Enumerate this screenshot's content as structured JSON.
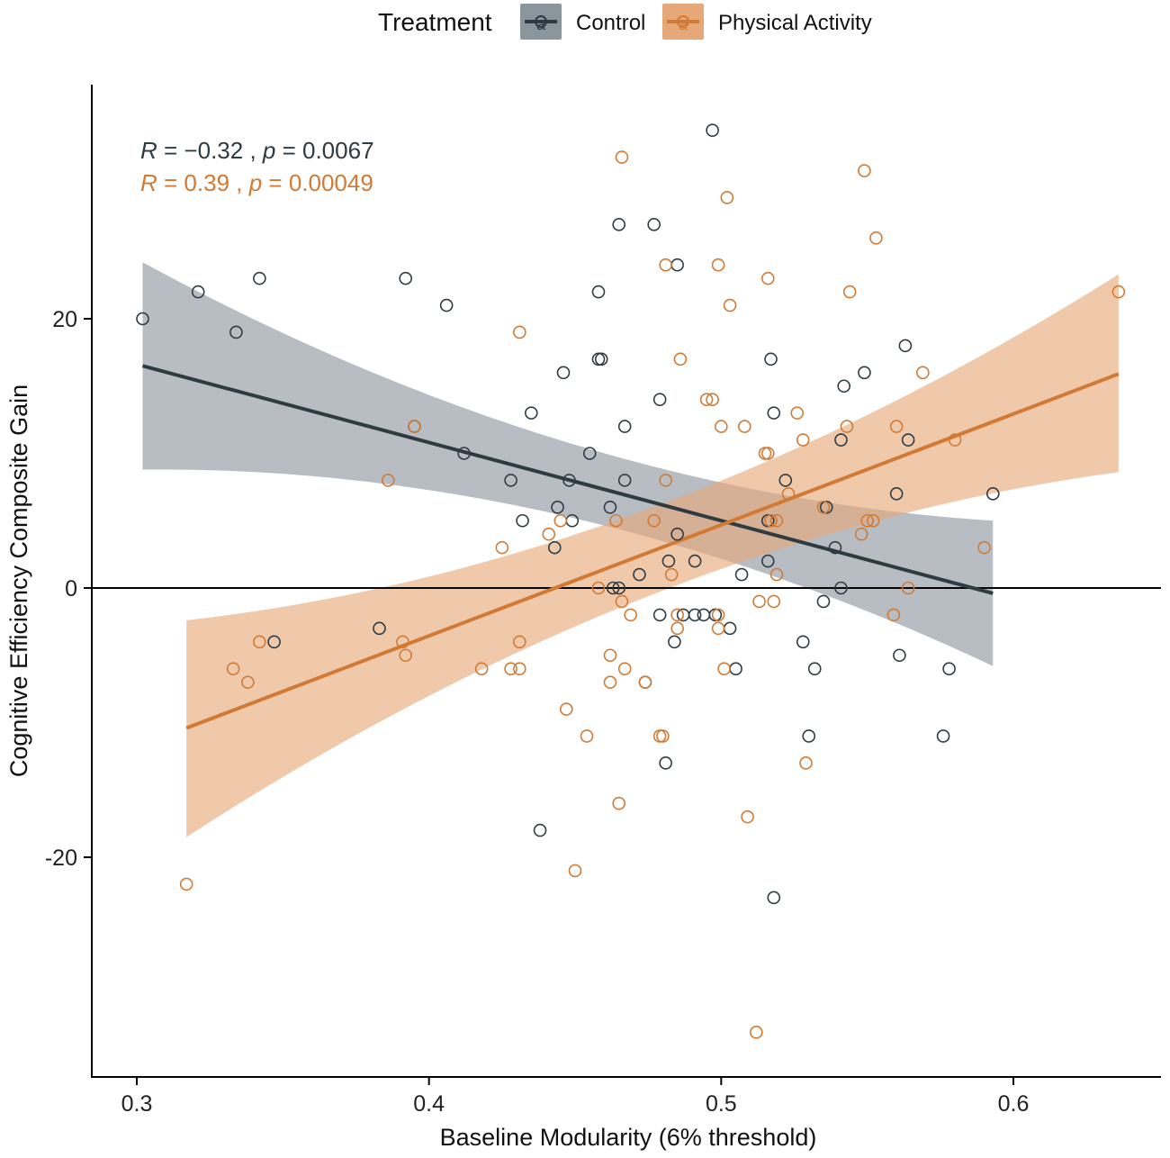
{
  "chart_data": {
    "type": "scatter",
    "xlabel": "Baseline Modularity (6% threshold)",
    "ylabel": "Cognitive Efficiency Composite Gain",
    "xlim": [
      0.285,
      0.65
    ],
    "ylim": [
      -36,
      37.5
    ],
    "xticks": [
      0.3,
      0.4,
      0.5,
      0.6
    ],
    "xtick_labels": [
      "0.3",
      "0.4",
      "0.5",
      "0.6"
    ],
    "yticks": [
      20,
      0,
      -20
    ],
    "ytick_labels": [
      "20",
      "0",
      "-20"
    ],
    "reference_line_y": 0,
    "grid": false,
    "legend": {
      "title": "Treatment",
      "position": "top",
      "entries": [
        "Control",
        "Physical Activity"
      ],
      "key_glyph": "a"
    },
    "series": [
      {
        "name": "Control",
        "color": "#2e3b42",
        "band_color": "#8a959c",
        "stat_R": "−0.32",
        "stat_p": "0.0067",
        "fit": {
          "x": [
            0.302,
            0.593
          ],
          "y": [
            16.5,
            -0.4
          ]
        },
        "ci_upper": [
          24.2,
          5.0
        ],
        "ci_lower": [
          8.8,
          -5.8
        ],
        "points": [
          [
            0.302,
            20
          ],
          [
            0.321,
            22
          ],
          [
            0.334,
            19
          ],
          [
            0.342,
            23
          ],
          [
            0.347,
            -4
          ],
          [
            0.383,
            -3
          ],
          [
            0.392,
            23
          ],
          [
            0.395,
            12
          ],
          [
            0.406,
            21
          ],
          [
            0.412,
            10
          ],
          [
            0.428,
            8
          ],
          [
            0.432,
            5
          ],
          [
            0.435,
            13
          ],
          [
            0.438,
            -18
          ],
          [
            0.443,
            3
          ],
          [
            0.444,
            6
          ],
          [
            0.446,
            16
          ],
          [
            0.448,
            8
          ],
          [
            0.449,
            5
          ],
          [
            0.455,
            10
          ],
          [
            0.458,
            22
          ],
          [
            0.458,
            17
          ],
          [
            0.459,
            17
          ],
          [
            0.462,
            6
          ],
          [
            0.463,
            0
          ],
          [
            0.465,
            27
          ],
          [
            0.465,
            0
          ],
          [
            0.467,
            12
          ],
          [
            0.467,
            8
          ],
          [
            0.472,
            1
          ],
          [
            0.474,
            -7
          ],
          [
            0.477,
            27
          ],
          [
            0.479,
            -2
          ],
          [
            0.479,
            14
          ],
          [
            0.481,
            -13
          ],
          [
            0.482,
            2
          ],
          [
            0.484,
            -4
          ],
          [
            0.485,
            24
          ],
          [
            0.485,
            4
          ],
          [
            0.487,
            -2
          ],
          [
            0.491,
            2
          ],
          [
            0.491,
            -2
          ],
          [
            0.494,
            -2
          ],
          [
            0.497,
            34
          ],
          [
            0.498,
            -2
          ],
          [
            0.503,
            -3
          ],
          [
            0.505,
            -6
          ],
          [
            0.507,
            1
          ],
          [
            0.516,
            5
          ],
          [
            0.516,
            2
          ],
          [
            0.517,
            17
          ],
          [
            0.518,
            13
          ],
          [
            0.518,
            -23
          ],
          [
            0.522,
            8
          ],
          [
            0.528,
            -4
          ],
          [
            0.53,
            -11
          ],
          [
            0.532,
            -6
          ],
          [
            0.535,
            -1
          ],
          [
            0.536,
            6
          ],
          [
            0.539,
            3
          ],
          [
            0.541,
            11
          ],
          [
            0.541,
            0
          ],
          [
            0.542,
            15
          ],
          [
            0.549,
            16
          ],
          [
            0.56,
            7
          ],
          [
            0.561,
            -5
          ],
          [
            0.563,
            18
          ],
          [
            0.564,
            11
          ],
          [
            0.576,
            -11
          ],
          [
            0.578,
            -6
          ],
          [
            0.593,
            7
          ]
        ]
      },
      {
        "name": "Physical Activity",
        "color": "#d27a34",
        "band_color": "#e6a878",
        "stat_R": "0.39",
        "stat_p": "0.00049",
        "fit": {
          "x": [
            0.317,
            0.636
          ],
          "y": [
            -10.4,
            15.9
          ]
        },
        "ci_upper": [
          -2.4,
          23.3
        ],
        "ci_lower": [
          -18.5,
          8.6
        ],
        "points": [
          [
            0.317,
            -22
          ],
          [
            0.333,
            -6
          ],
          [
            0.338,
            -7
          ],
          [
            0.342,
            -4
          ],
          [
            0.386,
            8
          ],
          [
            0.391,
            -4
          ],
          [
            0.392,
            -5
          ],
          [
            0.395,
            12
          ],
          [
            0.418,
            -6
          ],
          [
            0.425,
            3
          ],
          [
            0.428,
            -6
          ],
          [
            0.431,
            -6
          ],
          [
            0.431,
            -4
          ],
          [
            0.431,
            19
          ],
          [
            0.441,
            4
          ],
          [
            0.445,
            5
          ],
          [
            0.447,
            -9
          ],
          [
            0.45,
            -21
          ],
          [
            0.454,
            -11
          ],
          [
            0.458,
            0
          ],
          [
            0.462,
            -5
          ],
          [
            0.462,
            -7
          ],
          [
            0.464,
            5
          ],
          [
            0.465,
            -16
          ],
          [
            0.466,
            -1
          ],
          [
            0.466,
            32
          ],
          [
            0.467,
            -6
          ],
          [
            0.469,
            -2
          ],
          [
            0.474,
            -7
          ],
          [
            0.477,
            5
          ],
          [
            0.479,
            -11
          ],
          [
            0.48,
            -11
          ],
          [
            0.481,
            24
          ],
          [
            0.481,
            8
          ],
          [
            0.483,
            1
          ],
          [
            0.485,
            -2
          ],
          [
            0.485,
            -3
          ],
          [
            0.486,
            17
          ],
          [
            0.495,
            14
          ],
          [
            0.497,
            14
          ],
          [
            0.499,
            -2
          ],
          [
            0.499,
            -3
          ],
          [
            0.499,
            24
          ],
          [
            0.5,
            12
          ],
          [
            0.501,
            -6
          ],
          [
            0.502,
            29
          ],
          [
            0.503,
            21
          ],
          [
            0.508,
            12
          ],
          [
            0.509,
            -17
          ],
          [
            0.512,
            -33
          ],
          [
            0.513,
            -1
          ],
          [
            0.515,
            10
          ],
          [
            0.516,
            10
          ],
          [
            0.516,
            23
          ],
          [
            0.517,
            5
          ],
          [
            0.518,
            -1
          ],
          [
            0.519,
            5
          ],
          [
            0.519,
            1
          ],
          [
            0.523,
            7
          ],
          [
            0.526,
            13
          ],
          [
            0.528,
            11
          ],
          [
            0.529,
            -13
          ],
          [
            0.535,
            6
          ],
          [
            0.543,
            12
          ],
          [
            0.544,
            22
          ],
          [
            0.548,
            4
          ],
          [
            0.549,
            31
          ],
          [
            0.55,
            5
          ],
          [
            0.552,
            5
          ],
          [
            0.553,
            26
          ],
          [
            0.559,
            -2
          ],
          [
            0.56,
            12
          ],
          [
            0.564,
            0
          ],
          [
            0.569,
            16
          ],
          [
            0.58,
            11
          ],
          [
            0.59,
            3
          ],
          [
            0.636,
            22
          ]
        ]
      }
    ]
  }
}
